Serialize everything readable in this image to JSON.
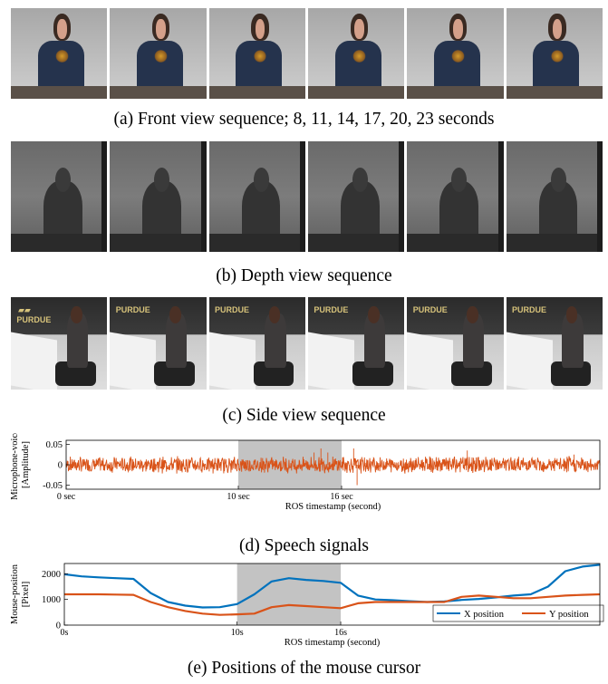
{
  "captions": {
    "a": "(a) Front view sequence; 8, 11, 14, 17, 20, 23 seconds",
    "b": "(b) Depth view sequence",
    "c": "(c) Side view sequence",
    "d": "(d) Speech signals",
    "e": "(e) Positions of the mouse cursor"
  },
  "side_sign_text": "PURDUE",
  "chart_data": [
    {
      "type": "line",
      "title": "",
      "ylabel_line1": "Microphone-voice",
      "ylabel_line2": "[Amplitude]",
      "xlabel": "ROS timestamp (second)",
      "yticks": [
        "0.05",
        "0",
        "-0.05"
      ],
      "ylim": [
        -0.06,
        0.06
      ],
      "xticks": [
        "0 sec",
        "10 sec",
        "16 sec"
      ],
      "xtick_values": [
        0,
        10,
        16
      ],
      "xlim": [
        0,
        31
      ],
      "shaded_region": [
        10,
        16
      ],
      "series": [
        {
          "color": "#d95319"
        }
      ]
    },
    {
      "type": "line",
      "title": "",
      "ylabel_line1": "Mouse-position",
      "ylabel_line2": "[Pixel]",
      "xlabel": "ROS timestamp (second)",
      "yticks": [
        "2000",
        "1000",
        "0"
      ],
      "ylim": [
        0,
        2400
      ],
      "xticks": [
        "0s",
        "10s",
        "16s"
      ],
      "xtick_values": [
        0,
        10,
        16
      ],
      "xlim": [
        0,
        31
      ],
      "shaded_region": [
        10,
        16
      ],
      "x": [
        0,
        1,
        2,
        3,
        4,
        5,
        6,
        7,
        8,
        9,
        10,
        11,
        12,
        13,
        14,
        15,
        16,
        17,
        18,
        19,
        20,
        21,
        22,
        23,
        24,
        25,
        26,
        27,
        28,
        29,
        30,
        31
      ],
      "series": [
        {
          "name": "X position",
          "color": "#0072bd",
          "values": [
            1980,
            1900,
            1860,
            1830,
            1800,
            1250,
            900,
            760,
            690,
            700,
            820,
            1200,
            1700,
            1830,
            1760,
            1720,
            1650,
            1150,
            1000,
            970,
            930,
            900,
            920,
            980,
            1020,
            1080,
            1150,
            1200,
            1500,
            2100,
            2280,
            2350
          ]
        },
        {
          "name": "Y position",
          "color": "#d95319",
          "values": [
            1200,
            1200,
            1200,
            1190,
            1180,
            900,
            700,
            550,
            450,
            400,
            420,
            450,
            700,
            780,
            740,
            700,
            660,
            850,
            900,
            900,
            900,
            900,
            900,
            1100,
            1150,
            1100,
            1050,
            1050,
            1100,
            1150,
            1180,
            1200
          ]
        }
      ],
      "legend_position": "bottom-right"
    }
  ]
}
